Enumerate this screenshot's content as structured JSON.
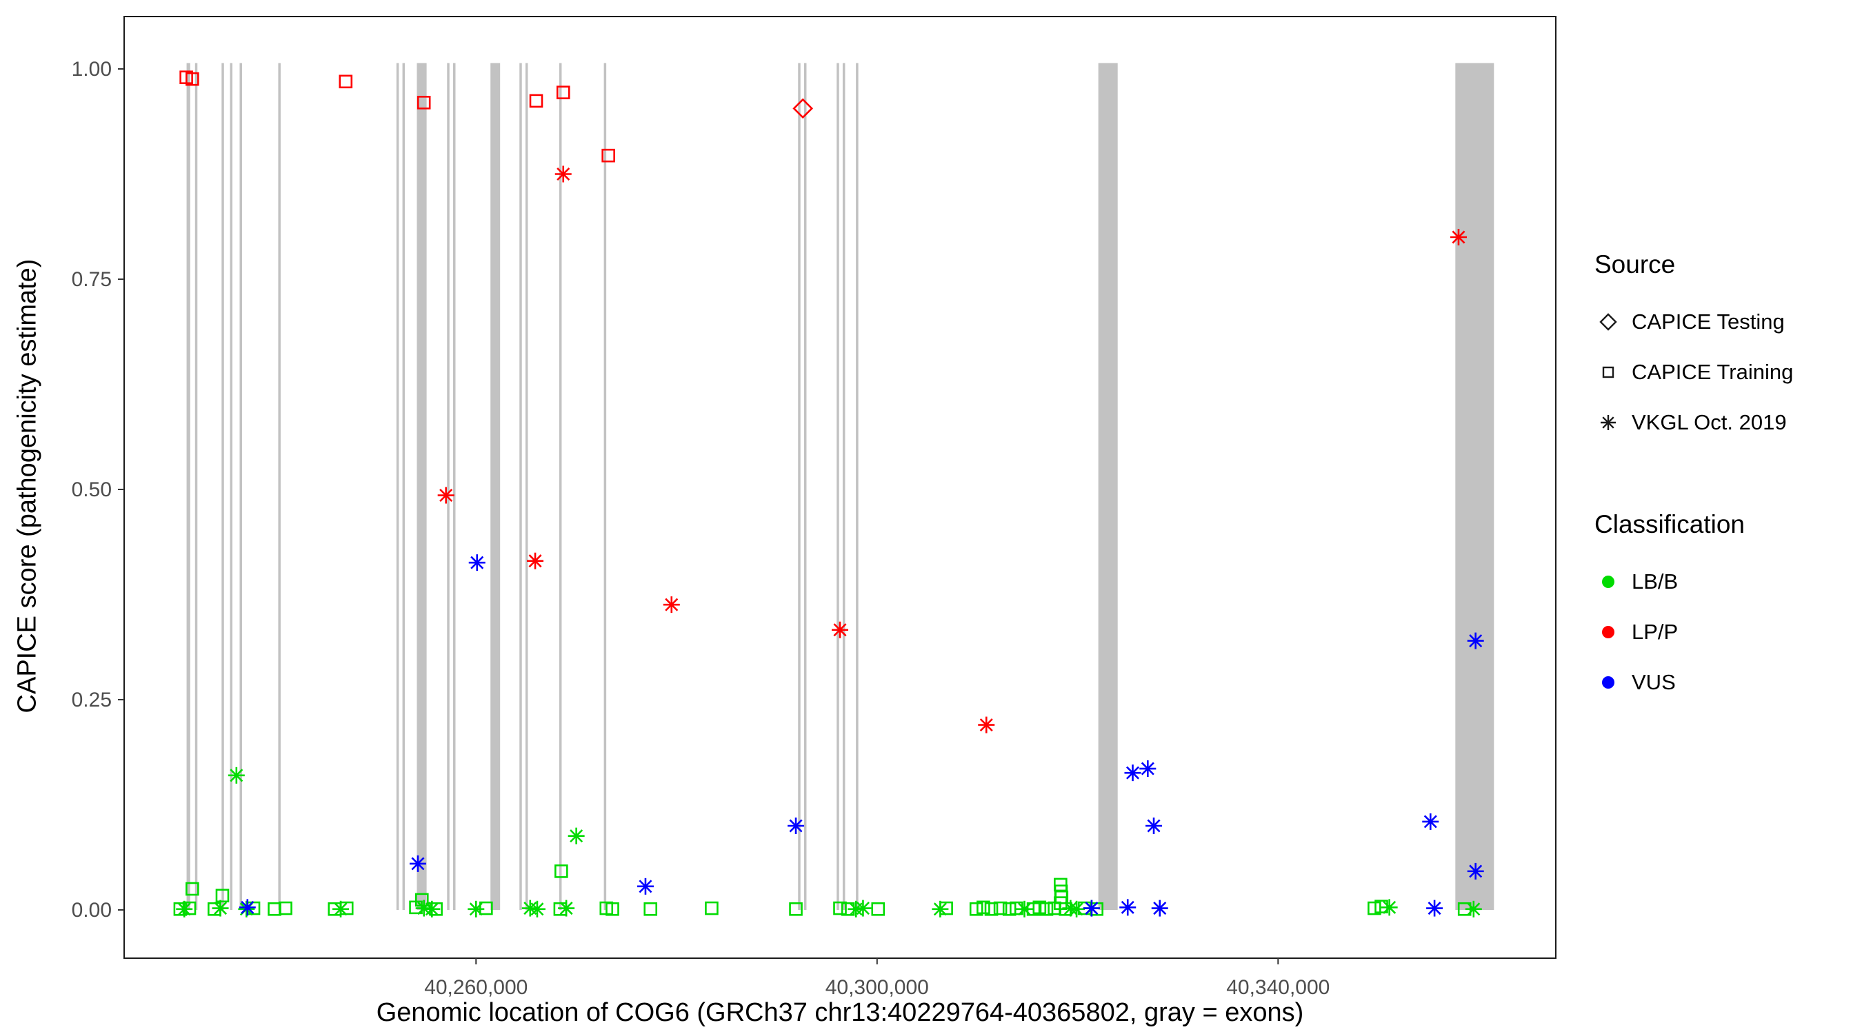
{
  "chart_data": {
    "type": "scatter",
    "title": "",
    "xlabel": "Genomic location of COG6 (GRCh37 chr13:40229764-40365802, gray = exons)",
    "ylabel": "CAPICE score (pathogenicity estimate)",
    "xlim": [
      40229764,
      40365802
    ],
    "ylim": [
      0,
      1
    ],
    "grid": false,
    "x_ticks": [
      {
        "value": 40260000,
        "label": "40,260,000"
      },
      {
        "value": 40300000,
        "label": "40,300,000"
      },
      {
        "value": 40340000,
        "label": "40,340,000"
      }
    ],
    "y_ticks": [
      {
        "value": 0.0,
        "label": "0.00"
      },
      {
        "value": 0.25,
        "label": "0.25"
      },
      {
        "value": 0.5,
        "label": "0.50"
      },
      {
        "value": 0.75,
        "label": "0.75"
      },
      {
        "value": 1.0,
        "label": "1.00"
      }
    ],
    "exon_color": "#C2C2C2",
    "classification_colors": {
      "LB/B": "#00DB00",
      "LP/P": "#FF0000",
      "VUS": "#0000FF"
    },
    "source_shapes": {
      "CAPICE Testing": "diamond",
      "CAPICE Training": "square",
      "VKGL Oct. 2019": "asterisk"
    },
    "exons": [
      [
        40231130,
        40231490
      ],
      [
        40231970,
        40232210
      ],
      [
        40234620,
        40234860
      ],
      [
        40235460,
        40235700
      ],
      [
        40236420,
        40236660
      ],
      [
        40240270,
        40240510
      ],
      [
        40252060,
        40252300
      ],
      [
        40252660,
        40252900
      ],
      [
        40254100,
        40255070
      ],
      [
        40257110,
        40257350
      ],
      [
        40257710,
        40257950
      ],
      [
        40261440,
        40262400
      ],
      [
        40264330,
        40264570
      ],
      [
        40264930,
        40265170
      ],
      [
        40268300,
        40268540
      ],
      [
        40272750,
        40272990
      ],
      [
        40292120,
        40292360
      ],
      [
        40292720,
        40292960
      ],
      [
        40295970,
        40296210
      ],
      [
        40296570,
        40296810
      ],
      [
        40297890,
        40298130
      ],
      [
        40322070,
        40324000
      ],
      [
        40357680,
        40361530
      ]
    ],
    "series": [
      {
        "name": "CAPICE Testing / LP/P",
        "source": "CAPICE Testing",
        "classification": "LP/P",
        "shape": "diamond",
        "color": "#FF0000",
        "points": [
          [
            40292600,
            0.953
          ]
        ]
      },
      {
        "name": "CAPICE Training / LP/P",
        "source": "CAPICE Training",
        "classification": "LP/P",
        "shape": "square",
        "color": "#FF0000",
        "points": [
          [
            40231100,
            0.99
          ],
          [
            40231700,
            0.988
          ],
          [
            40247000,
            0.985
          ],
          [
            40254800,
            0.96
          ],
          [
            40266000,
            0.962
          ],
          [
            40268700,
            0.972
          ],
          [
            40273200,
            0.897
          ]
        ]
      },
      {
        "name": "VKGL Oct. 2019 / LP/P",
        "source": "VKGL Oct. 2019",
        "classification": "LP/P",
        "shape": "asterisk",
        "color": "#FF0000",
        "points": [
          [
            40268700,
            0.875
          ],
          [
            40257000,
            0.493
          ],
          [
            40265900,
            0.415
          ],
          [
            40279500,
            0.363
          ],
          [
            40296300,
            0.333
          ],
          [
            40310900,
            0.22
          ],
          [
            40358000,
            0.8
          ]
        ]
      },
      {
        "name": "CAPICE Training / LB/B",
        "source": "CAPICE Training",
        "classification": "LB/B",
        "shape": "square",
        "color": "#00DB00",
        "points": [
          [
            40268500,
            0.046
          ],
          [
            40231700,
            0.025
          ],
          [
            40234700,
            0.017
          ],
          [
            40254600,
            0.012
          ],
          [
            40318300,
            0.03
          ],
          [
            40318350,
            0.022
          ],
          [
            40318400,
            0.015
          ],
          [
            40318300,
            0.008
          ],
          [
            40230500,
            0.001
          ],
          [
            40231400,
            0.002
          ],
          [
            40233900,
            0.001
          ],
          [
            40237800,
            0.002
          ],
          [
            40239900,
            0.001
          ],
          [
            40241000,
            0.002
          ],
          [
            40245900,
            0.001
          ],
          [
            40247100,
            0.002
          ],
          [
            40254000,
            0.003
          ],
          [
            40256000,
            0.001
          ],
          [
            40261000,
            0.002
          ],
          [
            40268400,
            0.001
          ],
          [
            40273000,
            0.002
          ],
          [
            40273600,
            0.001
          ],
          [
            40277400,
            0.001
          ],
          [
            40283500,
            0.002
          ],
          [
            40291900,
            0.001
          ],
          [
            40296300,
            0.002
          ],
          [
            40297100,
            0.001
          ],
          [
            40300100,
            0.001
          ],
          [
            40306900,
            0.002
          ],
          [
            40309900,
            0.001
          ],
          [
            40310600,
            0.003
          ],
          [
            40311400,
            0.001
          ],
          [
            40312300,
            0.002
          ],
          [
            40313200,
            0.001
          ],
          [
            40313900,
            0.002
          ],
          [
            40315600,
            0.001
          ],
          [
            40316200,
            0.003
          ],
          [
            40316900,
            0.001
          ],
          [
            40317700,
            0.002
          ],
          [
            40318800,
            0.001
          ],
          [
            40320700,
            0.002
          ],
          [
            40321900,
            0.001
          ],
          [
            40349600,
            0.002
          ],
          [
            40350300,
            0.004
          ],
          [
            40358600,
            0.001
          ]
        ]
      },
      {
        "name": "VKGL Oct. 2019 / LB/B",
        "source": "VKGL Oct. 2019",
        "classification": "LB/B",
        "shape": "asterisk",
        "color": "#00DB00",
        "points": [
          [
            40236100,
            0.16
          ],
          [
            40270000,
            0.088
          ],
          [
            40230900,
            0.001
          ],
          [
            40234500,
            0.002
          ],
          [
            40237100,
            0.001
          ],
          [
            40246500,
            0.001
          ],
          [
            40254800,
            0.002
          ],
          [
            40255600,
            0.001
          ],
          [
            40260000,
            0.001
          ],
          [
            40265400,
            0.002
          ],
          [
            40266100,
            0.001
          ],
          [
            40269000,
            0.002
          ],
          [
            40297900,
            0.001
          ],
          [
            40298600,
            0.002
          ],
          [
            40306300,
            0.001
          ],
          [
            40314700,
            0.001
          ],
          [
            40319300,
            0.002
          ],
          [
            40319900,
            0.001
          ],
          [
            40321400,
            0.002
          ],
          [
            40351100,
            0.003
          ],
          [
            40359500,
            0.001
          ]
        ]
      },
      {
        "name": "VKGL Oct. 2019 / VUS",
        "source": "VKGL Oct. 2019",
        "classification": "VUS",
        "shape": "asterisk",
        "color": "#0000FF",
        "points": [
          [
            40260100,
            0.413
          ],
          [
            40254200,
            0.055
          ],
          [
            40276900,
            0.028
          ],
          [
            40291900,
            0.1
          ],
          [
            40325500,
            0.163
          ],
          [
            40327000,
            0.168
          ],
          [
            40327600,
            0.1
          ],
          [
            40355200,
            0.105
          ],
          [
            40359700,
            0.32
          ],
          [
            40359700,
            0.046
          ],
          [
            40237200,
            0.003
          ],
          [
            40321400,
            0.002
          ],
          [
            40325000,
            0.003
          ],
          [
            40328200,
            0.002
          ],
          [
            40355600,
            0.002
          ]
        ]
      }
    ]
  },
  "legend": {
    "source": {
      "title": "Source",
      "items": [
        {
          "label": "CAPICE Testing",
          "shape": "diamond"
        },
        {
          "label": "CAPICE Training",
          "shape": "square"
        },
        {
          "label": "VKGL Oct. 2019",
          "shape": "asterisk"
        }
      ]
    },
    "classification": {
      "title": "Classification",
      "items": [
        {
          "label": "LB/B",
          "color": "#00DB00"
        },
        {
          "label": "LP/P",
          "color": "#FF0000"
        },
        {
          "label": "VUS",
          "color": "#0000FF"
        }
      ]
    }
  }
}
